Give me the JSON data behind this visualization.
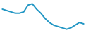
{
  "values": [
    30,
    29,
    28,
    27,
    27,
    28,
    33,
    34,
    30,
    27,
    23,
    20,
    18,
    17,
    16,
    15,
    16,
    18,
    20,
    19
  ],
  "line_color": "#2196C4",
  "background_color": "#ffffff",
  "linewidth": 1.4
}
